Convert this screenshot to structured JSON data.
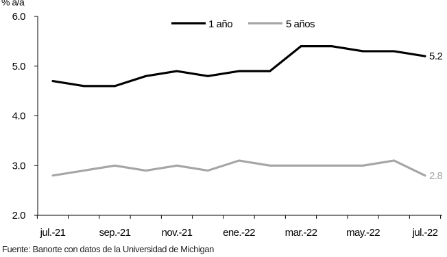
{
  "chart_data": {
    "type": "line",
    "ylabel": "% a/a",
    "ylim": [
      2.0,
      6.0
    ],
    "yticks": [
      "6.0",
      "5.0",
      "4.0",
      "3.0",
      "2.0"
    ],
    "categories": [
      "jul.-21",
      "ago.-21",
      "sep.-21",
      "oct.-21",
      "nov.-21",
      "dic.-21",
      "ene.-22",
      "feb.-22",
      "mar.-22",
      "abr.-22",
      "may.-22",
      "jun.-22",
      "jul.-22"
    ],
    "tick_labels": [
      "jul.-21",
      "sep.-21",
      "nov.-21",
      "ene.-22",
      "mar.-22",
      "may.-22",
      "jul.-22"
    ],
    "legend_position": "top",
    "grid": false,
    "series": [
      {
        "name": "1 año",
        "color": "#000000",
        "values": [
          4.7,
          4.6,
          4.6,
          4.8,
          4.9,
          4.8,
          4.9,
          4.9,
          5.4,
          5.4,
          5.3,
          5.3,
          5.2
        ],
        "end_label": "5.2"
      },
      {
        "name": "5 años",
        "color": "#a6a6a6",
        "values": [
          2.8,
          2.9,
          3.0,
          2.9,
          3.0,
          2.9,
          3.1,
          3.0,
          3.0,
          3.0,
          3.0,
          3.1,
          2.8
        ],
        "end_label": "2.8"
      }
    ]
  },
  "source": "Fuente: Banorte con datos de la Universidad de Michigan"
}
